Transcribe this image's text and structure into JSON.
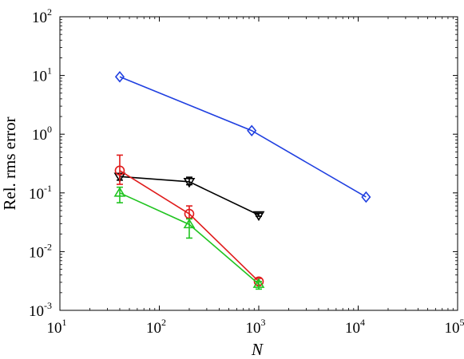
{
  "chart_data": {
    "type": "line",
    "xscale": "log",
    "yscale": "log",
    "xlim": [
      10,
      100000
    ],
    "ylim": [
      0.001,
      100
    ],
    "xlabel": "N",
    "ylabel": "Rel. rms error",
    "grid": false,
    "x_ticks": [
      {
        "base": "10",
        "exp": "1"
      },
      {
        "base": "10",
        "exp": "2"
      },
      {
        "base": "10",
        "exp": "3"
      },
      {
        "base": "10",
        "exp": "4"
      },
      {
        "base": "10",
        "exp": "5"
      }
    ],
    "y_ticks": [
      {
        "base": "10",
        "exp": "-3"
      },
      {
        "base": "10",
        "exp": "-2"
      },
      {
        "base": "10",
        "exp": "-1"
      },
      {
        "base": "10",
        "exp": "0"
      },
      {
        "base": "10",
        "exp": "1"
      },
      {
        "base": "10",
        "exp": "2"
      }
    ],
    "series": [
      {
        "color": "#1f3fe0",
        "marker": "diamond",
        "points": [
          {
            "x": 40,
            "y": 9.5
          },
          {
            "x": 850,
            "y": 1.15
          },
          {
            "x": 12000,
            "y": 0.085
          }
        ]
      },
      {
        "color": "#000000",
        "marker": "triangle-down",
        "points": [
          {
            "x": 40,
            "y": 0.19,
            "err_low": 0.165,
            "err_high": 0.215
          },
          {
            "x": 200,
            "y": 0.155,
            "err_low": 0.138,
            "err_high": 0.185
          },
          {
            "x": 1000,
            "y": 0.042,
            "err_low": 0.04,
            "err_high": 0.045
          }
        ]
      },
      {
        "color": "#e01b1b",
        "marker": "circle",
        "points": [
          {
            "x": 40,
            "y": 0.24,
            "err_low": 0.14,
            "err_high": 0.44
          },
          {
            "x": 200,
            "y": 0.044,
            "err_low": 0.037,
            "err_high": 0.06
          },
          {
            "x": 1000,
            "y": 0.0031,
            "err_low": 0.0027,
            "err_high": 0.0035
          }
        ]
      },
      {
        "color": "#21c421",
        "marker": "triangle-up",
        "points": [
          {
            "x": 40,
            "y": 0.1,
            "err_low": 0.068,
            "err_high": 0.125
          },
          {
            "x": 200,
            "y": 0.029,
            "err_low": 0.017,
            "err_high": 0.036
          },
          {
            "x": 1000,
            "y": 0.0028,
            "err_low": 0.0023,
            "err_high": 0.0031
          }
        ]
      }
    ]
  }
}
